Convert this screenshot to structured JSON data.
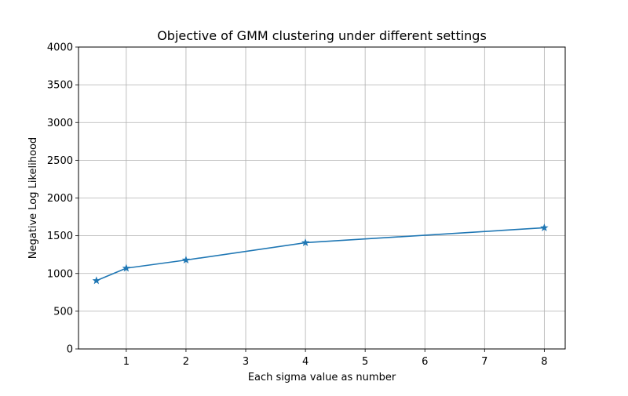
{
  "chart_data": {
    "type": "line",
    "title": "Objective of GMM clustering under different settings",
    "xlabel": "Each sigma value as number",
    "ylabel": "Negative Log Likelihood",
    "xlim": [
      0.2,
      8.35
    ],
    "ylim": [
      0,
      4000
    ],
    "xticks": [
      1,
      2,
      3,
      4,
      5,
      6,
      7,
      8
    ],
    "yticks": [
      0,
      500,
      1000,
      1500,
      2000,
      2500,
      3000,
      3500,
      4000
    ],
    "grid": true,
    "series": [
      {
        "marker": "star",
        "color": "#1f77b4",
        "x": [
          0.5,
          1,
          2,
          4,
          8
        ],
        "y": [
          905,
          1070,
          1178,
          1408,
          1606
        ]
      }
    ]
  }
}
